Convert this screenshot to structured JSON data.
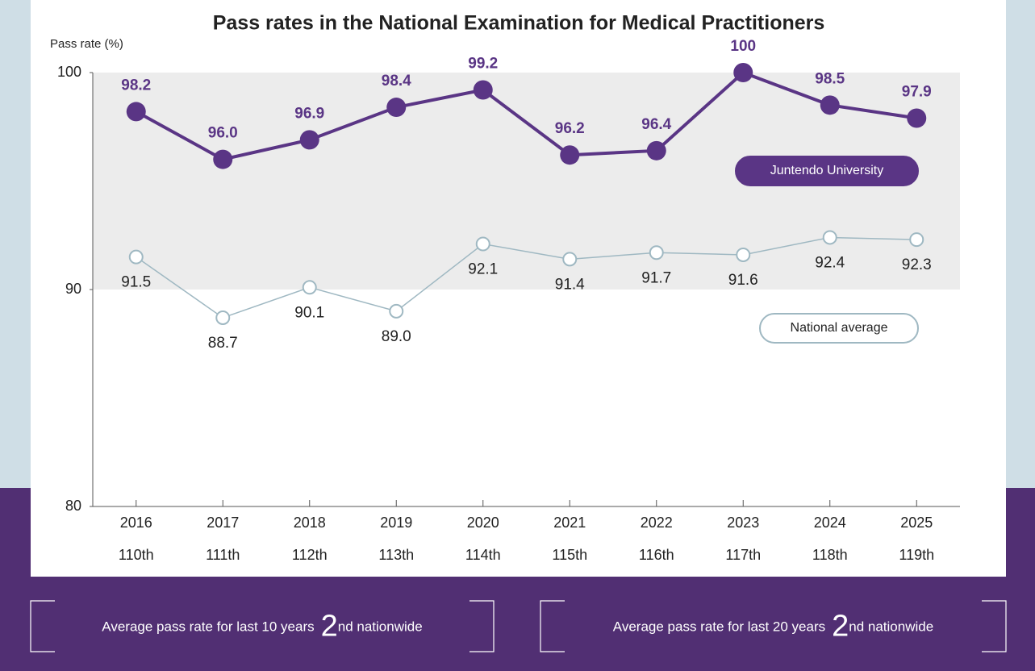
{
  "chart_data": {
    "type": "line",
    "title": "Pass rates in the National Examination for Medical Practitioners",
    "y_label": "Pass rate (%)",
    "categories": [
      "2016",
      "2017",
      "2018",
      "2019",
      "2020",
      "2021",
      "2022",
      "2023",
      "2024",
      "2025"
    ],
    "category_sublabels": [
      "110th",
      "111th",
      "112th",
      "113th",
      "114th",
      "115th",
      "116th",
      "117th",
      "118th",
      "119th"
    ],
    "series": [
      {
        "name": "Juntendo University",
        "color": "#5a3585",
        "values": [
          98.2,
          96.0,
          96.9,
          98.4,
          99.2,
          96.2,
          96.4,
          100,
          98.5,
          97.9
        ],
        "value_labels": [
          "98.2",
          "96.0",
          "96.9",
          "98.4",
          "99.2",
          "96.2",
          "96.4",
          "100",
          "98.5",
          "97.9"
        ]
      },
      {
        "name": "National average",
        "color": "#9fb8c2",
        "values": [
          91.5,
          88.7,
          90.1,
          89.0,
          92.1,
          91.4,
          91.7,
          91.6,
          92.4,
          92.3
        ],
        "value_labels": [
          "91.5",
          "88.7",
          "90.1",
          "89.0",
          "92.1",
          "91.4",
          "91.7",
          "91.6",
          "92.4",
          "92.3"
        ]
      }
    ],
    "ylim": [
      80,
      100
    ],
    "yticks": [
      80,
      90,
      100
    ],
    "shaded_range": [
      90,
      100
    ]
  },
  "highlights": [
    {
      "text": "Average pass rate for last 10 years",
      "rank": 2,
      "suffix": "nd nationwide"
    },
    {
      "text": "Average pass rate for last 20 years",
      "rank": 2,
      "suffix": "nd nationwide"
    }
  ]
}
